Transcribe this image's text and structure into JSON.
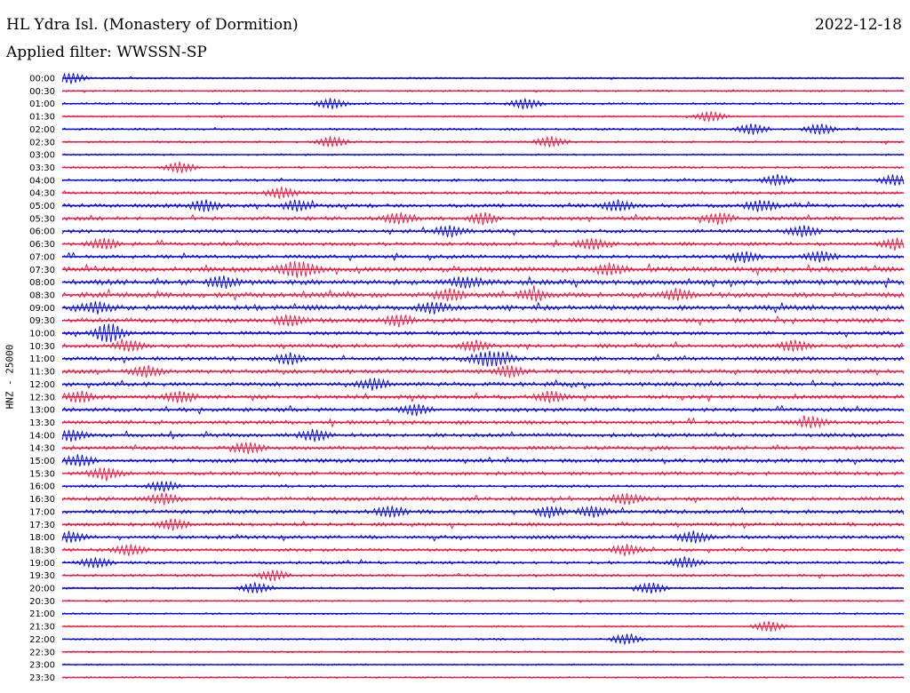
{
  "header": {
    "station": "HL Ydra Isl. (Monastery of Dormition)",
    "date": "2022-12-18",
    "filter": "Applied filter: WWSSN-SP"
  },
  "axis": {
    "ylabel": "HNZ - 25000"
  },
  "colors": {
    "even_row": "#0000e6",
    "odd_row": "#f0143c",
    "text": "#000000"
  },
  "chart_data": {
    "type": "line",
    "title": "HL Ydra Isl. (Monastery of Dormition)",
    "subtitle": "Applied filter: WWSSN-SP",
    "ylabel": "HNZ - 25000",
    "xlabel": "",
    "row_minutes": 30,
    "grid": false,
    "rows": [
      {
        "label": "00:00",
        "activity": 0.15,
        "events": [
          0.01
        ]
      },
      {
        "label": "00:30",
        "activity": 0.12,
        "events": []
      },
      {
        "label": "01:00",
        "activity": 0.2,
        "events": [
          0.32,
          0.55
        ]
      },
      {
        "label": "01:30",
        "activity": 0.1,
        "events": [
          0.77
        ]
      },
      {
        "label": "02:00",
        "activity": 0.2,
        "events": [
          0.82,
          0.9
        ]
      },
      {
        "label": "02:30",
        "activity": 0.18,
        "events": [
          0.32,
          0.58
        ]
      },
      {
        "label": "03:00",
        "activity": 0.1,
        "events": []
      },
      {
        "label": "03:30",
        "activity": 0.2,
        "events": [
          0.14
        ]
      },
      {
        "label": "04:00",
        "activity": 0.3,
        "events": [
          0.85,
          0.99
        ]
      },
      {
        "label": "04:30",
        "activity": 0.35,
        "events": [
          0.26
        ]
      },
      {
        "label": "05:00",
        "activity": 0.55,
        "events": [
          0.17,
          0.28,
          0.66,
          0.83
        ]
      },
      {
        "label": "05:30",
        "activity": 0.55,
        "events": [
          0.4,
          0.5,
          0.78
        ]
      },
      {
        "label": "06:00",
        "activity": 0.5,
        "events": [
          0.46,
          0.88
        ]
      },
      {
        "label": "06:30",
        "activity": 0.5,
        "events": [
          0.05,
          0.63,
          0.99
        ]
      },
      {
        "label": "07:00",
        "activity": 0.5,
        "events": [
          0.81,
          0.9
        ]
      },
      {
        "label": "07:30",
        "activity": 0.8,
        "events": [
          0.27,
          0.29,
          0.65
        ]
      },
      {
        "label": "08:00",
        "activity": 0.8,
        "events": [
          0.19,
          0.48
        ]
      },
      {
        "label": "08:30",
        "activity": 0.8,
        "events": [
          0.46,
          0.56,
          0.73
        ]
      },
      {
        "label": "09:00",
        "activity": 0.8,
        "events": [
          0.04,
          0.44
        ]
      },
      {
        "label": "09:30",
        "activity": 0.7,
        "events": [
          0.27,
          0.4
        ]
      },
      {
        "label": "10:00",
        "activity": 0.5,
        "events": [
          0.05,
          0.06
        ]
      },
      {
        "label": "10:30",
        "activity": 0.55,
        "events": [
          0.08,
          0.49,
          0.87
        ]
      },
      {
        "label": "11:00",
        "activity": 0.6,
        "events": [
          0.27,
          0.5,
          0.52
        ]
      },
      {
        "label": "11:30",
        "activity": 0.6,
        "events": [
          0.1,
          0.53
        ]
      },
      {
        "label": "12:00",
        "activity": 0.6,
        "events": [
          0.37
        ]
      },
      {
        "label": "12:30",
        "activity": 0.6,
        "events": [
          0.02,
          0.14,
          0.58
        ]
      },
      {
        "label": "13:00",
        "activity": 0.55,
        "events": [
          0.42
        ]
      },
      {
        "label": "13:30",
        "activity": 0.55,
        "events": [
          0.89
        ]
      },
      {
        "label": "14:00",
        "activity": 0.55,
        "events": [
          0.01,
          0.3
        ]
      },
      {
        "label": "14:30",
        "activity": 0.55,
        "events": [
          0.22
        ]
      },
      {
        "label": "15:00",
        "activity": 0.55,
        "events": [
          0.02
        ]
      },
      {
        "label": "15:30",
        "activity": 0.5,
        "events": [
          0.05
        ]
      },
      {
        "label": "16:00",
        "activity": 0.3,
        "events": [
          0.12
        ]
      },
      {
        "label": "16:30",
        "activity": 0.55,
        "events": [
          0.12,
          0.67
        ]
      },
      {
        "label": "17:00",
        "activity": 0.55,
        "events": [
          0.39,
          0.58,
          0.63
        ]
      },
      {
        "label": "17:30",
        "activity": 0.5,
        "events": [
          0.13
        ]
      },
      {
        "label": "18:00",
        "activity": 0.5,
        "events": [
          0.01,
          0.75
        ]
      },
      {
        "label": "18:30",
        "activity": 0.4,
        "events": [
          0.08,
          0.67
        ]
      },
      {
        "label": "19:00",
        "activity": 0.35,
        "events": [
          0.04,
          0.74
        ]
      },
      {
        "label": "19:30",
        "activity": 0.3,
        "events": [
          0.25
        ]
      },
      {
        "label": "20:00",
        "activity": 0.2,
        "events": [
          0.23,
          0.7
        ]
      },
      {
        "label": "20:30",
        "activity": 0.1,
        "events": []
      },
      {
        "label": "21:00",
        "activity": 0.12,
        "events": []
      },
      {
        "label": "21:30",
        "activity": 0.1,
        "events": [
          0.84
        ]
      },
      {
        "label": "22:00",
        "activity": 0.1,
        "events": [
          0.67
        ]
      },
      {
        "label": "22:30",
        "activity": 0.1,
        "events": []
      },
      {
        "label": "23:00",
        "activity": 0.08,
        "events": []
      },
      {
        "label": "23:30",
        "activity": 0.08,
        "events": []
      }
    ]
  }
}
